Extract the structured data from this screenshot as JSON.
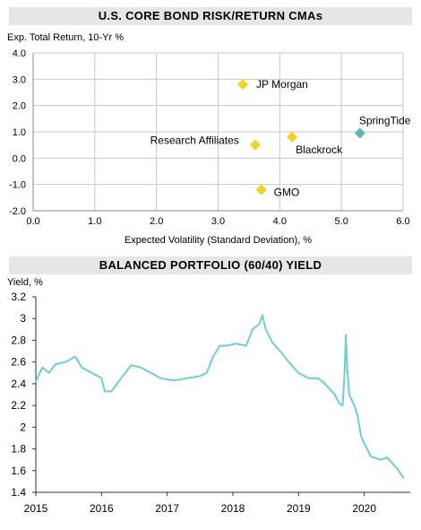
{
  "chart_data": [
    {
      "type": "scatter",
      "title": "U.S. CORE BOND RISK/RETURN CMAs",
      "ylabel": "Exp. Total Return, 10-Yr %",
      "xlabel": "Expected Volatility (Standard Deviation), %",
      "xlim": [
        0,
        6
      ],
      "ylim": [
        -2,
        4
      ],
      "x_ticks": [
        "0.0",
        "1.0",
        "2.0",
        "3.0",
        "4.0",
        "5.0",
        "6.0"
      ],
      "y_ticks": [
        "-2.0",
        "-1.0",
        "0.0",
        "1.0",
        "2.0",
        "3.0",
        "4.0"
      ],
      "grid": true,
      "points": [
        {
          "label": "JP Morgan",
          "x": 3.4,
          "y": 2.8,
          "color": "#f2d21b"
        },
        {
          "label": "Research Affiliates",
          "x": 3.6,
          "y": 0.5,
          "color": "#f2d21b"
        },
        {
          "label": "Blackrock",
          "x": 4.2,
          "y": 0.8,
          "color": "#f2d21b"
        },
        {
          "label": "GMO",
          "x": 3.7,
          "y": -1.2,
          "color": "#f2d21b"
        },
        {
          "label": "SpringTide",
          "x": 5.3,
          "y": 0.95,
          "color": "#5fb8b0"
        }
      ]
    },
    {
      "type": "line",
      "title": "BALANCED PORTFOLIO (60/40) YIELD",
      "ylabel": "Yield, %",
      "xlim": [
        2015,
        2020.7
      ],
      "ylim": [
        1.4,
        3.2
      ],
      "x_ticks": [
        "2015",
        "2016",
        "2017",
        "2018",
        "2019",
        "2020"
      ],
      "y_ticks": [
        "1.4",
        "1.6",
        "1.8",
        "2",
        "2.2",
        "2.4",
        "2.6",
        "2.8",
        "3",
        "3.2"
      ],
      "grid": false,
      "series": [
        {
          "color": "#6ccfd0",
          "x": [
            2015.0,
            2015.1,
            2015.2,
            2015.3,
            2015.45,
            2015.6,
            2015.7,
            2015.85,
            2016.0,
            2016.05,
            2016.15,
            2016.3,
            2016.45,
            2016.6,
            2016.75,
            2016.9,
            2017.1,
            2017.3,
            2017.5,
            2017.6,
            2017.7,
            2017.8,
            2017.9,
            2018.05,
            2018.2,
            2018.3,
            2018.4,
            2018.45,
            2018.5,
            2018.6,
            2018.75,
            2018.85,
            2019.0,
            2019.15,
            2019.3,
            2019.4,
            2019.55,
            2019.62,
            2019.67,
            2019.7,
            2019.72,
            2019.74,
            2019.77,
            2019.85,
            2019.9,
            2019.95,
            2020.0,
            2020.1,
            2020.25,
            2020.35,
            2020.5,
            2020.6
          ],
          "values": [
            2.42,
            2.55,
            2.5,
            2.58,
            2.6,
            2.65,
            2.55,
            2.5,
            2.45,
            2.33,
            2.33,
            2.45,
            2.57,
            2.55,
            2.5,
            2.45,
            2.43,
            2.45,
            2.47,
            2.5,
            2.65,
            2.75,
            2.75,
            2.77,
            2.75,
            2.9,
            2.95,
            3.03,
            2.9,
            2.78,
            2.68,
            2.6,
            2.5,
            2.45,
            2.45,
            2.4,
            2.3,
            2.22,
            2.2,
            2.5,
            2.85,
            2.55,
            2.3,
            2.2,
            2.1,
            1.92,
            1.85,
            1.73,
            1.7,
            1.72,
            1.62,
            1.53
          ]
        }
      ]
    }
  ]
}
